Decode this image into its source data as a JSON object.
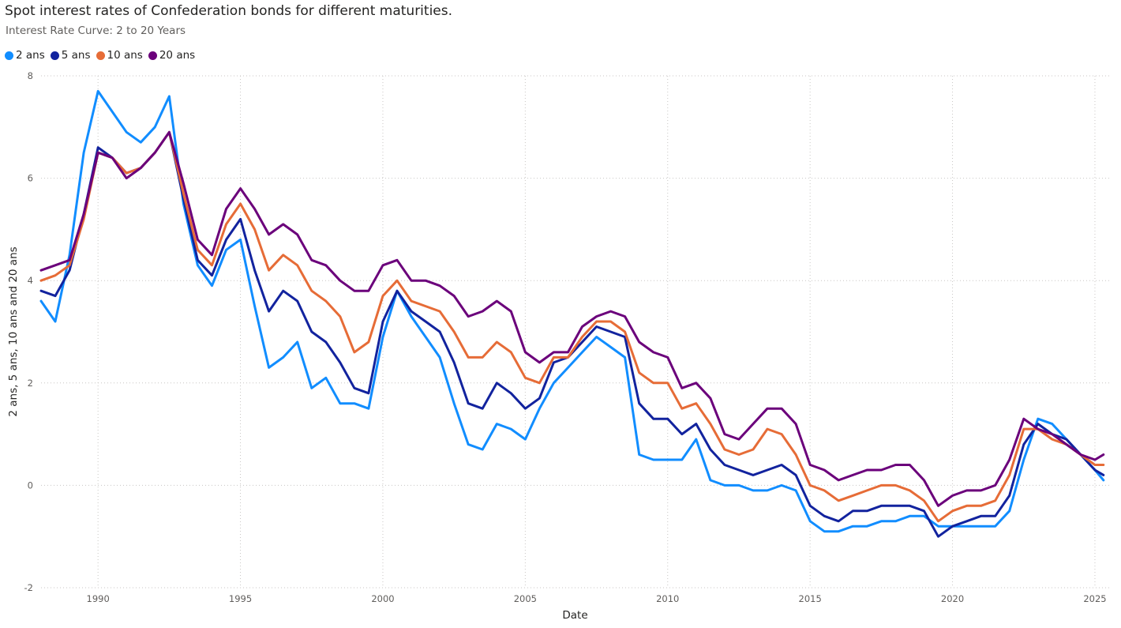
{
  "chart_data": {
    "type": "line",
    "title": "Spot interest rates of Confederation bonds for different maturities.",
    "subtitle": "Interest Rate Curve: 2 to 20 Years",
    "xlabel": "Date",
    "ylabel": "2 ans, 5 ans, 10 ans and 20 ans",
    "xlim": [
      1988.0,
      2025.5
    ],
    "ylim": [
      -2,
      8
    ],
    "grid": true,
    "legend_position": "top-left",
    "x_ticks": [
      "1990",
      "1995",
      "2000",
      "2005",
      "2010",
      "2015",
      "2020",
      "2025"
    ],
    "y_ticks": [
      "-2",
      "0",
      "2",
      "4",
      "6",
      "8"
    ],
    "x": [
      1988.0,
      1988.5,
      1989.0,
      1989.5,
      1990.0,
      1990.5,
      1991.0,
      1991.5,
      1992.0,
      1992.5,
      1993.0,
      1993.5,
      1994.0,
      1994.5,
      1995.0,
      1995.5,
      1996.0,
      1996.5,
      1997.0,
      1997.5,
      1998.0,
      1998.5,
      1999.0,
      1999.5,
      2000.0,
      2000.5,
      2001.0,
      2001.5,
      2002.0,
      2002.5,
      2003.0,
      2003.5,
      2004.0,
      2004.5,
      2005.0,
      2005.5,
      2006.0,
      2006.5,
      2007.0,
      2007.5,
      2008.0,
      2008.5,
      2009.0,
      2009.5,
      2010.0,
      2010.5,
      2011.0,
      2011.5,
      2012.0,
      2012.5,
      2013.0,
      2013.5,
      2014.0,
      2014.5,
      2015.0,
      2015.5,
      2016.0,
      2016.5,
      2017.0,
      2017.5,
      2018.0,
      2018.5,
      2019.0,
      2019.5,
      2020.0,
      2020.5,
      2021.0,
      2021.5,
      2022.0,
      2022.5,
      2023.0,
      2023.5,
      2024.0,
      2024.5,
      2025.0,
      2025.3
    ],
    "series": [
      {
        "name": "2 ans",
        "color": "#118dff",
        "values": [
          3.6,
          3.2,
          4.5,
          6.5,
          7.7,
          7.3,
          6.9,
          6.7,
          7.0,
          7.6,
          5.5,
          4.3,
          3.9,
          4.6,
          4.8,
          3.5,
          2.3,
          2.5,
          2.8,
          1.9,
          2.1,
          1.6,
          1.6,
          1.5,
          2.9,
          3.8,
          3.3,
          2.9,
          2.5,
          1.6,
          0.8,
          0.7,
          1.2,
          1.1,
          0.9,
          1.5,
          2.0,
          2.3,
          2.6,
          2.9,
          2.7,
          2.5,
          0.6,
          0.5,
          0.5,
          0.5,
          0.9,
          0.1,
          0.0,
          0.0,
          -0.1,
          -0.1,
          -0.0,
          -0.1,
          -0.7,
          -0.9,
          -0.9,
          -0.8,
          -0.8,
          -0.7,
          -0.7,
          -0.6,
          -0.6,
          -0.8,
          -0.8,
          -0.8,
          -0.8,
          -0.8,
          -0.5,
          0.5,
          1.3,
          1.2,
          0.9,
          0.6,
          0.3,
          0.1
        ]
      },
      {
        "name": "5 ans",
        "color": "#12239e",
        "values": [
          3.8,
          3.7,
          4.2,
          5.3,
          6.6,
          6.4,
          6.1,
          6.2,
          6.5,
          6.9,
          5.6,
          4.4,
          4.1,
          4.8,
          5.2,
          4.2,
          3.4,
          3.8,
          3.6,
          3.0,
          2.8,
          2.4,
          1.9,
          1.8,
          3.2,
          3.8,
          3.4,
          3.2,
          3.0,
          2.4,
          1.6,
          1.5,
          2.0,
          1.8,
          1.5,
          1.7,
          2.4,
          2.5,
          2.8,
          3.1,
          3.0,
          2.9,
          1.6,
          1.3,
          1.3,
          1.0,
          1.2,
          0.7,
          0.4,
          0.3,
          0.2,
          0.3,
          0.4,
          0.2,
          -0.4,
          -0.6,
          -0.7,
          -0.5,
          -0.5,
          -0.4,
          -0.4,
          -0.4,
          -0.5,
          -1.0,
          -0.8,
          -0.7,
          -0.6,
          -0.6,
          -0.2,
          0.8,
          1.2,
          1.0,
          0.9,
          0.6,
          0.3,
          0.2
        ]
      },
      {
        "name": "10 ans",
        "color": "#e66c37",
        "values": [
          4.0,
          4.1,
          4.3,
          5.2,
          6.5,
          6.4,
          6.1,
          6.2,
          6.5,
          6.9,
          5.7,
          4.6,
          4.3,
          5.1,
          5.5,
          5.0,
          4.2,
          4.5,
          4.3,
          3.8,
          3.6,
          3.3,
          2.6,
          2.8,
          3.7,
          4.0,
          3.6,
          3.5,
          3.4,
          3.0,
          2.5,
          2.5,
          2.8,
          2.6,
          2.1,
          2.0,
          2.5,
          2.5,
          2.9,
          3.2,
          3.2,
          3.0,
          2.2,
          2.0,
          2.0,
          1.5,
          1.6,
          1.2,
          0.7,
          0.6,
          0.7,
          1.1,
          1.0,
          0.6,
          0.0,
          -0.1,
          -0.3,
          -0.2,
          -0.1,
          0.0,
          0.0,
          -0.1,
          -0.3,
          -0.7,
          -0.5,
          -0.4,
          -0.4,
          -0.3,
          0.2,
          1.1,
          1.1,
          0.9,
          0.8,
          0.6,
          0.4,
          0.4
        ]
      },
      {
        "name": "20 ans",
        "color": "#6b007b",
        "values": [
          4.2,
          4.3,
          4.4,
          5.3,
          6.5,
          6.4,
          6.0,
          6.2,
          6.5,
          6.9,
          5.9,
          4.8,
          4.5,
          5.4,
          5.8,
          5.4,
          4.9,
          5.1,
          4.9,
          4.4,
          4.3,
          4.0,
          3.8,
          3.8,
          4.3,
          4.4,
          4.0,
          4.0,
          3.9,
          3.7,
          3.3,
          3.4,
          3.6,
          3.4,
          2.6,
          2.4,
          2.6,
          2.6,
          3.1,
          3.3,
          3.4,
          3.3,
          2.8,
          2.6,
          2.5,
          1.9,
          2.0,
          1.7,
          1.0,
          0.9,
          1.2,
          1.5,
          1.5,
          1.2,
          0.4,
          0.3,
          0.1,
          0.2,
          0.3,
          0.3,
          0.4,
          0.4,
          0.1,
          -0.4,
          -0.2,
          -0.1,
          -0.1,
          0.0,
          0.5,
          1.3,
          1.1,
          1.0,
          0.8,
          0.6,
          0.5,
          0.6
        ]
      }
    ]
  }
}
